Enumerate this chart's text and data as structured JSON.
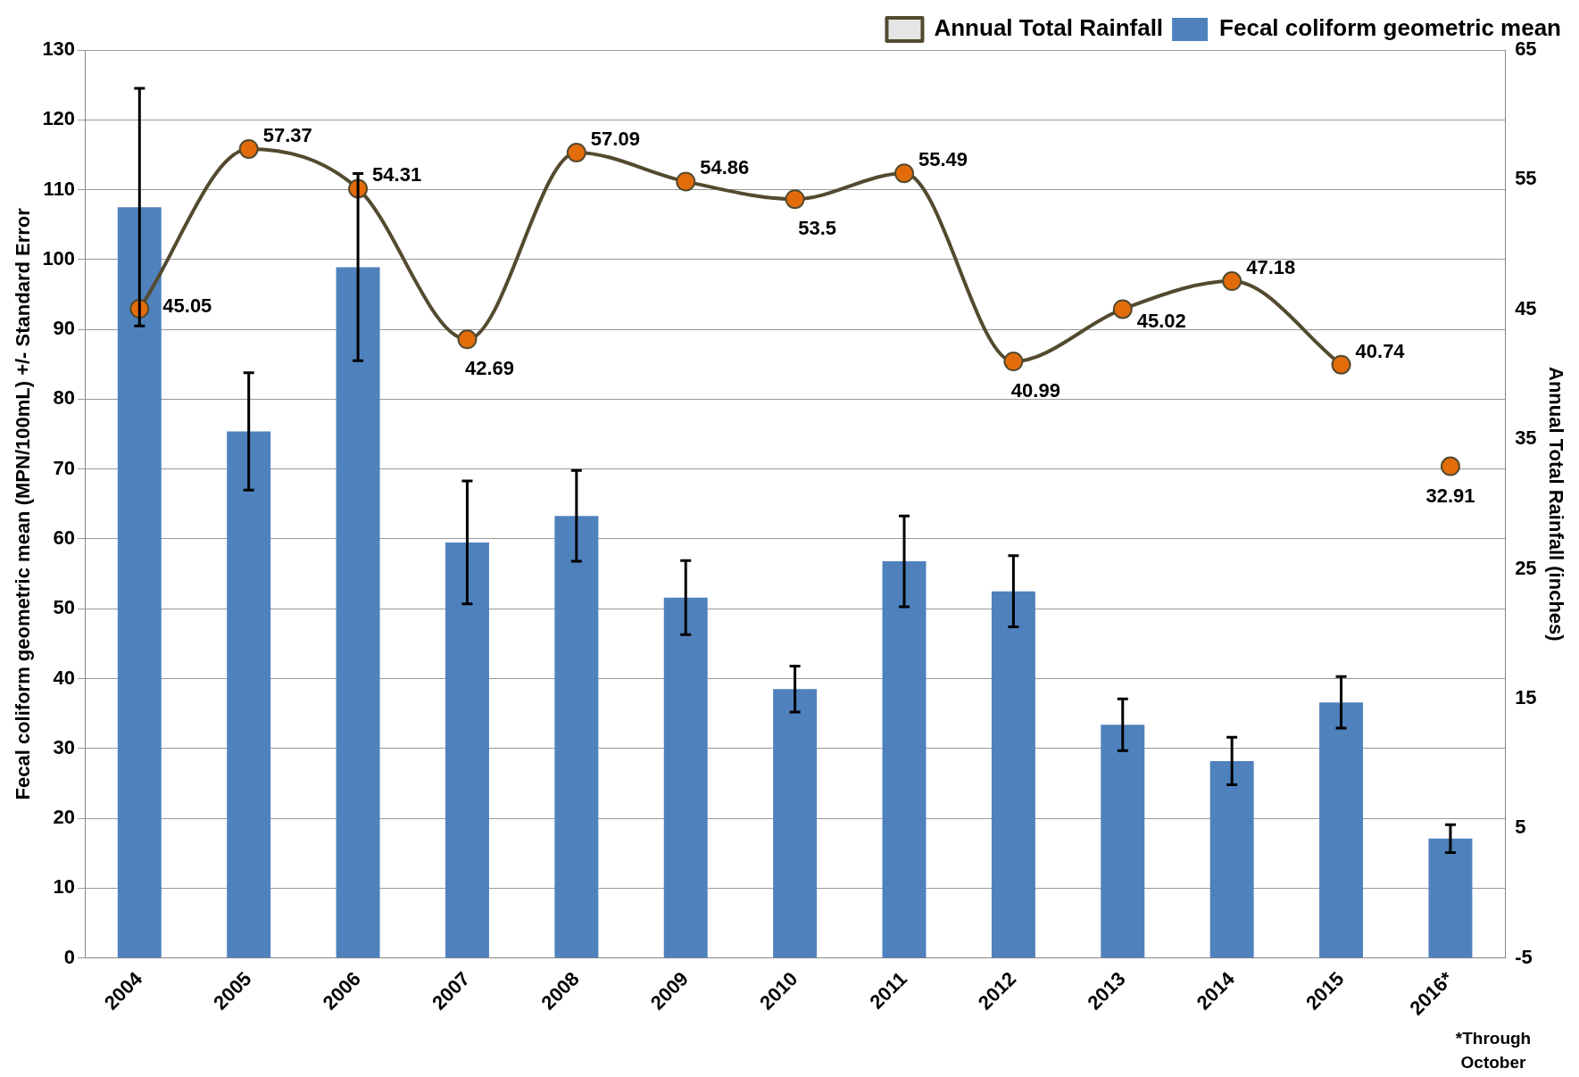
{
  "chart_data": {
    "type": "bar",
    "categories": [
      "2004",
      "2005",
      "2006",
      "2007",
      "2008",
      "2009",
      "2010",
      "2011",
      "2012",
      "2013",
      "2014",
      "2015",
      "2016*"
    ],
    "ylabel": "Fecal coliform geometric mean (MPN/100mL) +/- Standard Error",
    "y2label": "Annual Total Rainfall (inches)",
    "ylim": [
      0,
      130
    ],
    "yticks": [
      0,
      10,
      20,
      30,
      40,
      50,
      60,
      70,
      80,
      90,
      100,
      110,
      120,
      130
    ],
    "y2lim": [
      -5,
      65
    ],
    "y2ticks": [
      -5,
      5,
      15,
      25,
      35,
      45,
      55,
      65
    ],
    "grid": "y",
    "legend": "top right",
    "annotations": [
      "*Through October"
    ],
    "series": [
      {
        "name": "Fecal coliform geometric mean",
        "color": "#4f81bd",
        "values": [
          107.5,
          75.4,
          98.9,
          59.5,
          63.3,
          51.6,
          38.5,
          56.8,
          52.5,
          33.4,
          28.2,
          36.6,
          17.1
        ],
        "errors": [
          17,
          8.4,
          13.4,
          8.8,
          6.5,
          5.3,
          3.3,
          6.5,
          5.1,
          3.7,
          3.4,
          3.7,
          2
        ]
      },
      {
        "type": "line",
        "name": "Annual Total Rainfall",
        "axis": "y2",
        "color": "#534a2f",
        "marker": "circle",
        "values": [
          45.05,
          57.37,
          54.31,
          42.69,
          57.09,
          54.86,
          53.5,
          55.49,
          40.99,
          45.02,
          47.18,
          40.74,
          null
        ],
        "value_labels": [
          "45.05",
          "57.37",
          "54.31",
          "42.69",
          "57.09",
          "54.86",
          "53.5",
          "55.49",
          "40.99",
          "45.02",
          "47.18",
          "40.74",
          null
        ]
      },
      {
        "type": "scatter",
        "axis": "y2",
        "color": "#534a2f",
        "marker": "circle",
        "values": [
          null,
          null,
          null,
          null,
          null,
          null,
          null,
          null,
          null,
          null,
          null,
          null,
          32.91
        ],
        "value_labels": [
          null,
          null,
          null,
          null,
          null,
          null,
          null,
          null,
          null,
          null,
          null,
          null,
          "32.91"
        ]
      }
    ]
  }
}
